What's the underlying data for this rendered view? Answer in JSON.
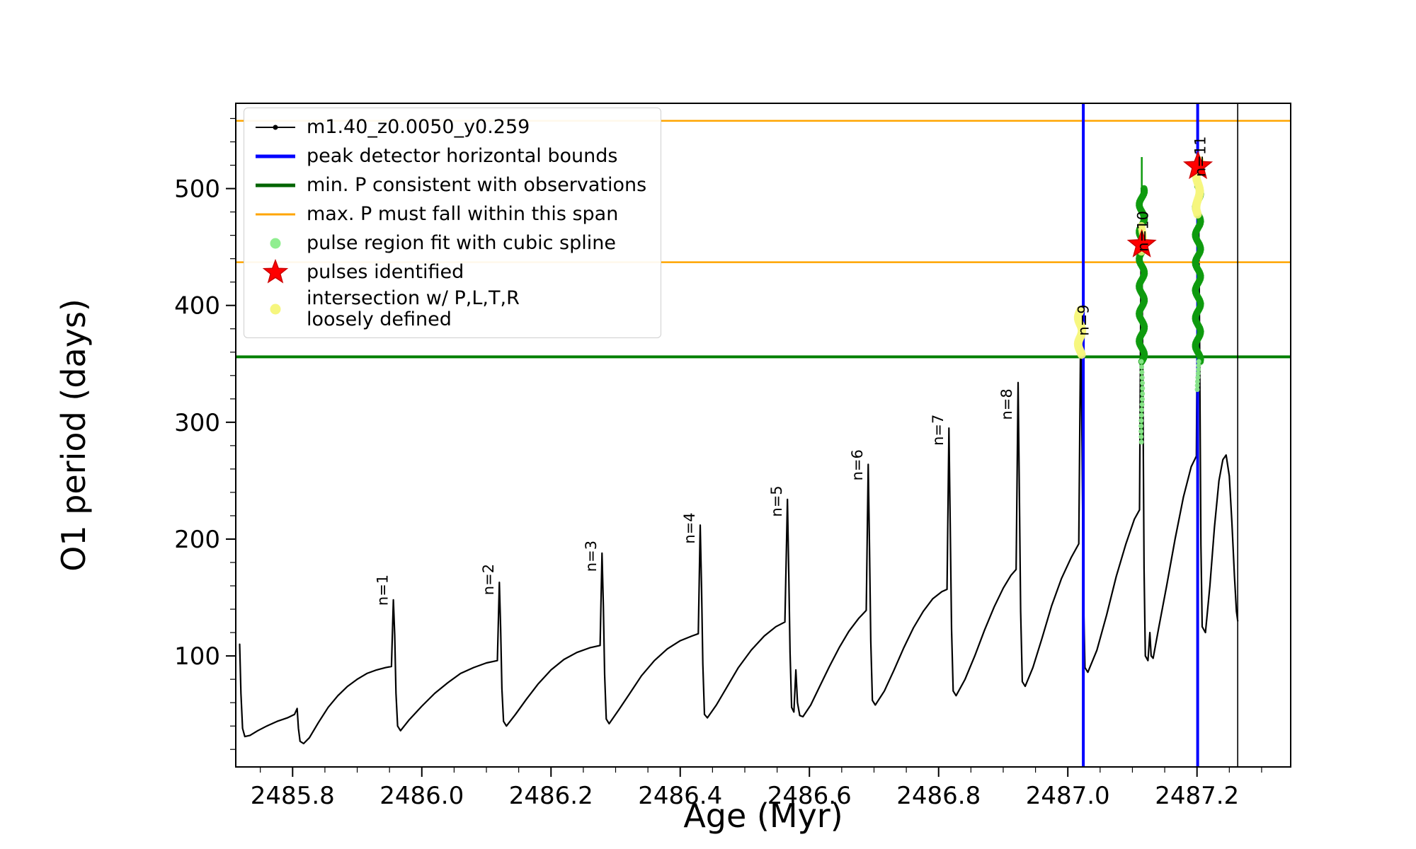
{
  "chart_data": {
    "type": "line",
    "title": "",
    "xlabel": "Age (Myr)",
    "ylabel": "O1 period (days)",
    "xlim": [
      2485.712,
      2487.345
    ],
    "ylim": [
      5,
      573
    ],
    "grid": false,
    "xticks": [
      {
        "v": 2485.8,
        "label": "2485.8"
      },
      {
        "v": 2486.0,
        "label": "2486.0"
      },
      {
        "v": 2486.2,
        "label": "2486.2"
      },
      {
        "v": 2486.4,
        "label": "2486.4"
      },
      {
        "v": 2486.6,
        "label": "2486.6"
      },
      {
        "v": 2486.8,
        "label": "2486.8"
      },
      {
        "v": 2487.0,
        "label": "2487.0"
      },
      {
        "v": 2487.2,
        "label": "2487.2"
      }
    ],
    "yticks": [
      {
        "v": 100,
        "label": "100"
      },
      {
        "v": 200,
        "label": "200"
      },
      {
        "v": 300,
        "label": "300"
      },
      {
        "v": 400,
        "label": "400"
      },
      {
        "v": 500,
        "label": "500"
      }
    ],
    "minor_x_step": 0.05,
    "minor_y_step": 20,
    "series": [
      {
        "name": "m1.40_z0.0050_y0.259",
        "color": "#000000",
        "points": [
          [
            2485.718,
            110
          ],
          [
            2485.72,
            68
          ],
          [
            2485.7225,
            38
          ],
          [
            2485.726,
            31
          ],
          [
            2485.734,
            32
          ],
          [
            2485.746,
            36
          ],
          [
            2485.76,
            40
          ],
          [
            2485.776,
            44
          ],
          [
            2485.792,
            47
          ],
          [
            2485.803,
            50
          ],
          [
            2485.807,
            55
          ],
          [
            2485.809,
            38
          ],
          [
            2485.8115,
            27
          ],
          [
            2485.817,
            25
          ],
          [
            2485.826,
            30
          ],
          [
            2485.84,
            43
          ],
          [
            2485.855,
            56
          ],
          [
            2485.87,
            66
          ],
          [
            2485.885,
            74
          ],
          [
            2485.9,
            80
          ],
          [
            2485.915,
            85
          ],
          [
            2485.93,
            88
          ],
          [
            2485.944,
            90
          ],
          [
            2485.953,
            91
          ],
          [
            2485.956,
            148
          ],
          [
            2485.958,
            118
          ],
          [
            2485.96,
            68
          ],
          [
            2485.9625,
            40
          ],
          [
            2485.967,
            36
          ],
          [
            2485.98,
            45
          ],
          [
            2486.0,
            57
          ],
          [
            2486.02,
            68
          ],
          [
            2486.04,
            77
          ],
          [
            2486.06,
            85
          ],
          [
            2486.08,
            90
          ],
          [
            2486.1,
            94
          ],
          [
            2486.117,
            96
          ],
          [
            2486.12,
            163
          ],
          [
            2486.122,
            124
          ],
          [
            2486.124,
            72
          ],
          [
            2486.1265,
            44
          ],
          [
            2486.131,
            40
          ],
          [
            2486.145,
            50
          ],
          [
            2486.162,
            63
          ],
          [
            2486.18,
            76
          ],
          [
            2486.2,
            88
          ],
          [
            2486.22,
            97
          ],
          [
            2486.24,
            103
          ],
          [
            2486.26,
            107
          ],
          [
            2486.276,
            109
          ],
          [
            2486.279,
            188
          ],
          [
            2486.281,
            143
          ],
          [
            2486.283,
            84
          ],
          [
            2486.2855,
            46
          ],
          [
            2486.29,
            42
          ],
          [
            2486.305,
            54
          ],
          [
            2486.322,
            68
          ],
          [
            2486.34,
            83
          ],
          [
            2486.36,
            96
          ],
          [
            2486.38,
            106
          ],
          [
            2486.4,
            113
          ],
          [
            2486.418,
            117
          ],
          [
            2486.428,
            119
          ],
          [
            2486.431,
            212
          ],
          [
            2486.433,
            158
          ],
          [
            2486.435,
            93
          ],
          [
            2486.4375,
            50
          ],
          [
            2486.442,
            47
          ],
          [
            2486.456,
            58
          ],
          [
            2486.472,
            73
          ],
          [
            2486.49,
            90
          ],
          [
            2486.51,
            105
          ],
          [
            2486.53,
            117
          ],
          [
            2486.548,
            125
          ],
          [
            2486.562,
            129
          ],
          [
            2486.566,
            234
          ],
          [
            2486.568,
            173
          ],
          [
            2486.57,
            103
          ],
          [
            2486.5725,
            56
          ],
          [
            2486.576,
            52
          ],
          [
            2486.579,
            88
          ],
          [
            2486.5815,
            60
          ],
          [
            2486.585,
            49
          ],
          [
            2486.59,
            48
          ],
          [
            2486.602,
            58
          ],
          [
            2486.616,
            74
          ],
          [
            2486.631,
            91
          ],
          [
            2486.646,
            107
          ],
          [
            2486.661,
            121
          ],
          [
            2486.676,
            132
          ],
          [
            2486.688,
            139
          ],
          [
            2486.691,
            264
          ],
          [
            2486.693,
            193
          ],
          [
            2486.695,
            113
          ],
          [
            2486.6975,
            62
          ],
          [
            2486.702,
            58
          ],
          [
            2486.716,
            70
          ],
          [
            2486.731,
            88
          ],
          [
            2486.746,
            107
          ],
          [
            2486.761,
            124
          ],
          [
            2486.776,
            138
          ],
          [
            2486.791,
            149
          ],
          [
            2486.805,
            155
          ],
          [
            2486.813,
            157
          ],
          [
            2486.816,
            295
          ],
          [
            2486.818,
            213
          ],
          [
            2486.82,
            123
          ],
          [
            2486.8225,
            70
          ],
          [
            2486.827,
            66
          ],
          [
            2486.841,
            80
          ],
          [
            2486.856,
            100
          ],
          [
            2486.871,
            122
          ],
          [
            2486.886,
            142
          ],
          [
            2486.9,
            158
          ],
          [
            2486.912,
            169
          ],
          [
            2486.92,
            174
          ],
          [
            2486.923,
            334
          ],
          [
            2486.925,
            238
          ],
          [
            2486.927,
            138
          ],
          [
            2486.9295,
            78
          ],
          [
            2486.934,
            74
          ],
          [
            2486.946,
            90
          ],
          [
            2486.96,
            115
          ],
          [
            2486.975,
            143
          ],
          [
            2486.99,
            166
          ],
          [
            2487.005,
            184
          ],
          [
            2487.017,
            196
          ],
          [
            2487.02,
            389
          ],
          [
            2487.022,
            278
          ],
          [
            2487.024,
            158
          ],
          [
            2487.0265,
            90
          ],
          [
            2487.031,
            86
          ],
          [
            2487.045,
            105
          ],
          [
            2487.06,
            135
          ],
          [
            2487.075,
            168
          ],
          [
            2487.09,
            196
          ],
          [
            2487.103,
            217
          ],
          [
            2487.111,
            225
          ],
          [
            2487.114,
            500
          ],
          [
            2487.116,
            345
          ],
          [
            2487.118,
            175
          ],
          [
            2487.12,
            100
          ],
          [
            2487.124,
            96
          ],
          [
            2487.127,
            120
          ],
          [
            2487.129,
            100
          ],
          [
            2487.132,
            98
          ],
          [
            2487.141,
            125
          ],
          [
            2487.153,
            160
          ],
          [
            2487.166,
            200
          ],
          [
            2487.179,
            236
          ],
          [
            2487.191,
            262
          ],
          [
            2487.199,
            271
          ],
          [
            2487.202,
            527
          ],
          [
            2487.204,
            375
          ],
          [
            2487.206,
            195
          ],
          [
            2487.208,
            125
          ],
          [
            2487.213,
            120
          ],
          [
            2487.22,
            160
          ],
          [
            2487.227,
            210
          ],
          [
            2487.234,
            250
          ],
          [
            2487.24,
            268
          ],
          [
            2487.245,
            272
          ],
          [
            2487.25,
            254
          ],
          [
            2487.254,
            214
          ],
          [
            2487.258,
            168
          ],
          [
            2487.261,
            138
          ],
          [
            2487.263,
            130
          ]
        ]
      }
    ],
    "hlines": [
      {
        "y": 558,
        "color": "#ffa500",
        "lw": 2.5,
        "name": "max-P-upper-bound"
      },
      {
        "y": 437,
        "color": "#ffa500",
        "lw": 2.5,
        "name": "max-P-lower-bound"
      },
      {
        "y": 356,
        "color": "#007f00",
        "lw": 4,
        "name": "min-P-line"
      }
    ],
    "vlines": [
      {
        "x": 2487.024,
        "color": "#0000ff",
        "lw": 4,
        "name": "peak-detector-left-bound"
      },
      {
        "x": 2487.201,
        "color": "#0000ff",
        "lw": 4,
        "name": "peak-detector-right-bound"
      },
      {
        "x": 2487.263,
        "color": "#000000",
        "lw": 1.6,
        "name": "track-end-line"
      }
    ],
    "spline_lines": [
      {
        "x": 2487.1145,
        "y0": 283,
        "y1": 527,
        "color": "#0f9b0f",
        "lw": 2.5
      },
      {
        "x": 2487.2015,
        "y0": 328,
        "y1": 527,
        "color": "#0f9b0f",
        "lw": 2.5
      }
    ],
    "clusters": [
      {
        "x": 2487.1145,
        "y_min": 352,
        "y_max": 500,
        "count": 95,
        "r": 5,
        "spread": 0.004,
        "color": "#0f9b0f",
        "opacity": 0.95
      },
      {
        "x": 2487.1145,
        "y_min": 283,
        "y_max": 352,
        "count": 16,
        "r": 3.5,
        "spread": 0.0012,
        "color": "#8ce88c",
        "opacity": 0.95
      },
      {
        "x": 2487.2015,
        "y_min": 352,
        "y_max": 502,
        "count": 95,
        "r": 5,
        "spread": 0.004,
        "color": "#0f9b0f",
        "opacity": 0.95
      },
      {
        "x": 2487.2015,
        "y_min": 328,
        "y_max": 352,
        "count": 8,
        "r": 3.5,
        "spread": 0.0012,
        "color": "#8ce88c",
        "opacity": 0.95
      },
      {
        "x": 2487.019,
        "y_min": 358,
        "y_max": 396,
        "count": 26,
        "r": 6,
        "spread": 0.003,
        "color": "#f6f67e",
        "opacity": 0.9
      },
      {
        "x": 2487.1145,
        "y_min": 446,
        "y_max": 468,
        "count": 10,
        "r": 5.5,
        "spread": 0.002,
        "color": "#f6f67e",
        "opacity": 0.85
      },
      {
        "x": 2487.2015,
        "y_min": 478,
        "y_max": 524,
        "count": 26,
        "r": 6,
        "spread": 0.0028,
        "color": "#f6f67e",
        "opacity": 0.9
      }
    ],
    "stars": [
      {
        "x": 2487.1145,
        "y": 452
      },
      {
        "x": 2487.2015,
        "y": 519
      }
    ],
    "star_color": "#ff0000",
    "annotations": [
      {
        "label": "n=1",
        "x": 2485.947,
        "y": 143
      },
      {
        "label": "n=2",
        "x": 2486.111,
        "y": 152
      },
      {
        "label": "n=3",
        "x": 2486.27,
        "y": 172
      },
      {
        "label": "n=4",
        "x": 2486.422,
        "y": 196
      },
      {
        "label": "n=5",
        "x": 2486.557,
        "y": 219
      },
      {
        "label": "n=6",
        "x": 2486.682,
        "y": 250
      },
      {
        "label": "n=7",
        "x": 2486.807,
        "y": 280
      },
      {
        "label": "n=8",
        "x": 2486.913,
        "y": 302
      },
      {
        "label": "n=9",
        "x": 2487.032,
        "y": 374
      },
      {
        "label": "n=10",
        "x": 2487.124,
        "y": 446
      },
      {
        "label": "n=11",
        "x": 2487.213,
        "y": 510
      }
    ],
    "legend": {
      "items": [
        {
          "marker": "line-dot",
          "color": "#000000",
          "lw": 2,
          "label": "m1.40_z0.0050_y0.259"
        },
        {
          "marker": "line",
          "color": "#0000ff",
          "lw": 5,
          "label": "peak detector horizontal bounds"
        },
        {
          "marker": "line",
          "color": "#006400",
          "lw": 5,
          "label": "min. P consistent with observations"
        },
        {
          "marker": "line",
          "color": "#ffa500",
          "lw": 3,
          "label": "max. P must fall within this span"
        },
        {
          "marker": "dot",
          "color": "#90ee90",
          "lw": 0,
          "label": "pulse region fit with cubic spline"
        },
        {
          "marker": "star",
          "color": "#ff0000",
          "lw": 0,
          "label": "pulses identified"
        },
        {
          "marker": "dot",
          "color": "#f6f67e",
          "lw": 0,
          "label": "intersection w/ P,L,T,R\nloosely defined"
        }
      ]
    }
  }
}
